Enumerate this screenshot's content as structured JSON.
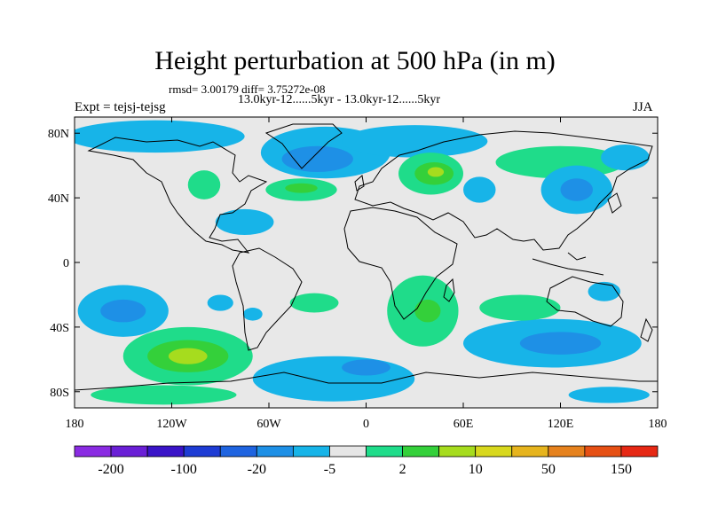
{
  "title": "Height perturbation at 500 hPa (in m)",
  "stats_text": "rmsd= 3.00179 diff= 3.75272e-08",
  "period_text": "13.0kyr-12......5kyr - 13.0kyr-12......5kyr",
  "experiment_text": "Expt = tejsj-tejsg",
  "season": "JJA",
  "map": {
    "lat_range": [
      -90,
      90
    ],
    "lon_range": [
      -180,
      180
    ],
    "lat_ticks": [
      {
        "value": 80,
        "label": "80N"
      },
      {
        "value": 40,
        "label": "40N"
      },
      {
        "value": 0,
        "label": "0"
      },
      {
        "value": -40,
        "label": "40S"
      },
      {
        "value": -80,
        "label": "80S"
      }
    ],
    "lon_ticks": [
      {
        "value": -180,
        "label": "180"
      },
      {
        "value": -120,
        "label": "120W"
      },
      {
        "value": -60,
        "label": "60W"
      },
      {
        "value": 0,
        "label": "0"
      },
      {
        "value": 60,
        "label": "60E"
      },
      {
        "value": 120,
        "label": "120E"
      },
      {
        "value": 180,
        "label": "180"
      }
    ],
    "background_color": "#e8e8e8"
  },
  "colorbar": {
    "colors": [
      "#8a2be2",
      "#6a1fd6",
      "#3a14c8",
      "#1e3cd4",
      "#1f64e0",
      "#1e90e6",
      "#17b4e8",
      "#e6e6e6",
      "#1fdc8a",
      "#34d03a",
      "#a6dc1e",
      "#d8d81e",
      "#e6b41e",
      "#e6821e",
      "#e65014",
      "#e62814"
    ],
    "labels": [
      "-200",
      "-100",
      "-20",
      "-5",
      "2",
      "10",
      "50",
      "150"
    ]
  },
  "contour_fields": [
    {
      "lon": -130,
      "lat": 78,
      "rx": 55,
      "ry": 10,
      "level": "-2"
    },
    {
      "lon": -25,
      "lat": 68,
      "rx": 40,
      "ry": 16,
      "level": "-2"
    },
    {
      "lon": -30,
      "lat": 64,
      "rx": 22,
      "ry": 8,
      "level": "-5"
    },
    {
      "lon": 30,
      "lat": 75,
      "rx": 45,
      "ry": 10,
      "level": "-2"
    },
    {
      "lon": 120,
      "lat": 62,
      "rx": 40,
      "ry": 10,
      "level": "2"
    },
    {
      "lon": 160,
      "lat": 65,
      "rx": 15,
      "ry": 8,
      "level": "-2"
    },
    {
      "lon": -40,
      "lat": 45,
      "rx": 22,
      "ry": 7,
      "level": "2"
    },
    {
      "lon": -40,
      "lat": 46,
      "rx": 10,
      "ry": 3,
      "level": "10"
    },
    {
      "lon": -100,
      "lat": 48,
      "rx": 10,
      "ry": 9,
      "level": "2"
    },
    {
      "lon": -75,
      "lat": 25,
      "rx": 18,
      "ry": 8,
      "level": "-2"
    },
    {
      "lon": 40,
      "lat": 55,
      "rx": 20,
      "ry": 13,
      "level": "2"
    },
    {
      "lon": 42,
      "lat": 55,
      "rx": 12,
      "ry": 7,
      "level": "10"
    },
    {
      "lon": 43,
      "lat": 56,
      "rx": 5,
      "ry": 3,
      "level": "50"
    },
    {
      "lon": 70,
      "lat": 45,
      "rx": 10,
      "ry": 8,
      "level": "-2"
    },
    {
      "lon": 130,
      "lat": 45,
      "rx": 22,
      "ry": 15,
      "level": "-2"
    },
    {
      "lon": 130,
      "lat": 45,
      "rx": 10,
      "ry": 7,
      "level": "-5"
    },
    {
      "lon": 147,
      "lat": -18,
      "rx": 10,
      "ry": 6,
      "level": "-2"
    },
    {
      "lon": -150,
      "lat": -30,
      "rx": 28,
      "ry": 16,
      "level": "-2"
    },
    {
      "lon": -150,
      "lat": -30,
      "rx": 14,
      "ry": 7,
      "level": "-5"
    },
    {
      "lon": -110,
      "lat": -58,
      "rx": 40,
      "ry": 18,
      "level": "2"
    },
    {
      "lon": -110,
      "lat": -58,
      "rx": 25,
      "ry": 10,
      "level": "10"
    },
    {
      "lon": -110,
      "lat": -58,
      "rx": 12,
      "ry": 5,
      "level": "50"
    },
    {
      "lon": -125,
      "lat": -82,
      "rx": 45,
      "ry": 6,
      "level": "2"
    },
    {
      "lon": -70,
      "lat": -32,
      "rx": 6,
      "ry": 4,
      "level": "-2"
    },
    {
      "lon": -32,
      "lat": -25,
      "rx": 15,
      "ry": 6,
      "level": "2"
    },
    {
      "lon": -20,
      "lat": -72,
      "rx": 50,
      "ry": 14,
      "level": "-2"
    },
    {
      "lon": 0,
      "lat": -65,
      "rx": 15,
      "ry": 5,
      "level": "-5"
    },
    {
      "lon": 35,
      "lat": -30,
      "rx": 22,
      "ry": 22,
      "level": "2"
    },
    {
      "lon": 38,
      "lat": -30,
      "rx": 8,
      "ry": 7,
      "level": "10"
    },
    {
      "lon": 115,
      "lat": -50,
      "rx": 55,
      "ry": 15,
      "level": "-2"
    },
    {
      "lon": 120,
      "lat": -50,
      "rx": 25,
      "ry": 7,
      "level": "-5"
    },
    {
      "lon": 150,
      "lat": -82,
      "rx": 25,
      "ry": 5,
      "level": "-2"
    },
    {
      "lon": 95,
      "lat": -28,
      "rx": 25,
      "ry": 8,
      "level": "2"
    },
    {
      "lon": -90,
      "lat": -25,
      "rx": 8,
      "ry": 5,
      "level": "-2"
    }
  ]
}
